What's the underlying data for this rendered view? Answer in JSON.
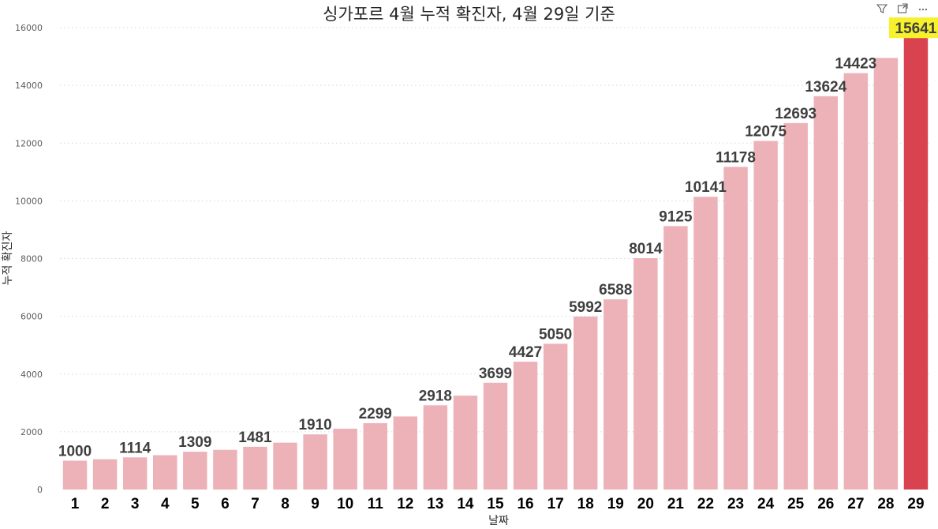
{
  "header": {
    "title": "싱가포르 4월 누적 확진자, 4월 29일 기준",
    "icons": [
      "filter-icon",
      "focus-mode-icon",
      "more-options-icon"
    ]
  },
  "colors": {
    "bar": "#edb2b8",
    "highlight_bar": "#d9434f",
    "highlight_label_bg": "#f6f12b",
    "gridline": "#d6d6d6"
  },
  "chart_data": {
    "type": "bar",
    "title": "싱가포르 4월 누적 확진자, 4월 29일 기준",
    "xlabel": "날짜",
    "ylabel": "누적 확진자",
    "ylim": [
      0,
      16000
    ],
    "yticks": [
      0,
      2000,
      4000,
      6000,
      8000,
      10000,
      12000,
      14000,
      16000
    ],
    "grid": true,
    "categories": [
      "1",
      "2",
      "3",
      "4",
      "5",
      "6",
      "7",
      "8",
      "9",
      "10",
      "11",
      "12",
      "13",
      "14",
      "15",
      "16",
      "17",
      "18",
      "19",
      "20",
      "21",
      "22",
      "23",
      "24",
      "25",
      "26",
      "27",
      "28",
      "29"
    ],
    "values": [
      1000,
      1049,
      1114,
      1189,
      1309,
      1375,
      1481,
      1623,
      1910,
      2108,
      2299,
      2532,
      2918,
      3252,
      3699,
      4427,
      5050,
      5992,
      6588,
      8014,
      9125,
      10141,
      11178,
      12075,
      12693,
      13624,
      14423,
      14951,
      15641
    ],
    "data_labels": [
      "1000",
      "",
      "1114",
      "",
      "1309",
      "",
      "1481",
      "",
      "1910",
      "",
      "2299",
      "",
      "2918",
      "",
      "3699",
      "4427",
      "5050",
      "5992",
      "6588",
      "8014",
      "9125",
      "10141",
      "11178",
      "12075",
      "12693",
      "13624",
      "14423",
      "",
      "15641"
    ],
    "highlight_index": 28
  }
}
